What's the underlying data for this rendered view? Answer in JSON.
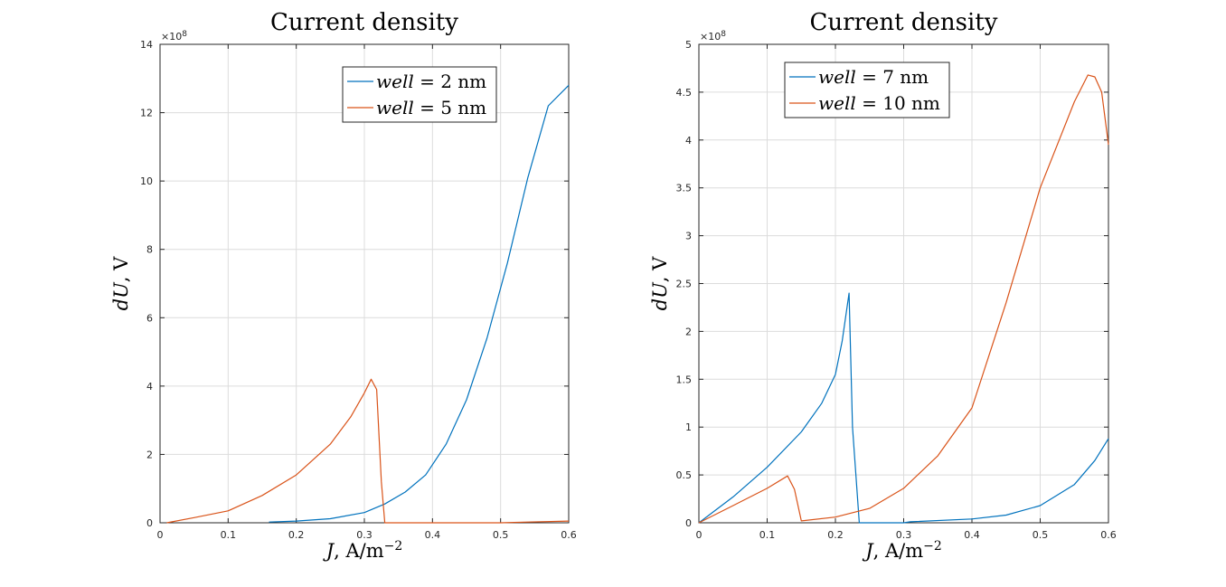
{
  "chart_data": [
    {
      "type": "line",
      "title": "Current density",
      "xlabel": "J, A/m^-2",
      "xlabel_main": "J",
      "xlabel_unit": ", A/m",
      "xlabel_exp": "−2",
      "ylabel": "dU, V",
      "ylabel_main": "dU",
      "ylabel_unit": ", V",
      "y_multiplier": "×10",
      "y_multiplier_exp": "8",
      "xlim": [
        0,
        0.6
      ],
      "ylim": [
        0,
        14
      ],
      "xticks": [
        "0",
        "0.1",
        "0.2",
        "0.3",
        "0.4",
        "0.5",
        "0.6"
      ],
      "yticks": [
        "0",
        "2",
        "4",
        "6",
        "8",
        "10",
        "12",
        "14"
      ],
      "grid": true,
      "legend_position": "top-right",
      "colors": [
        "#0072BD",
        "#D95319"
      ],
      "series": [
        {
          "name": "well = 2 nm",
          "legend_var": "well",
          "legend_eq": " = 2 nm",
          "x": [
            0.16,
            0.2,
            0.25,
            0.3,
            0.33,
            0.36,
            0.39,
            0.42,
            0.45,
            0.48,
            0.51,
            0.54,
            0.57,
            0.6
          ],
          "y": [
            0.02,
            0.05,
            0.12,
            0.3,
            0.55,
            0.9,
            1.4,
            2.3,
            3.6,
            5.4,
            7.6,
            10.1,
            12.2,
            12.8
          ]
        },
        {
          "name": "well = 5 nm",
          "legend_var": "well",
          "legend_eq": " = 5 nm",
          "x": [
            0.01,
            0.05,
            0.1,
            0.15,
            0.2,
            0.25,
            0.28,
            0.3,
            0.31,
            0.318,
            0.325,
            0.33,
            0.4,
            0.5,
            0.54,
            0.6
          ],
          "y": [
            0.0,
            0.15,
            0.35,
            0.8,
            1.4,
            2.3,
            3.1,
            3.8,
            4.2,
            3.9,
            1.2,
            0.0,
            0.0,
            0.0,
            0.02,
            0.05
          ]
        }
      ]
    },
    {
      "type": "line",
      "title": "Current density",
      "xlabel": "J, A/m^-2",
      "xlabel_main": "J",
      "xlabel_unit": ", A/m",
      "xlabel_exp": "−2",
      "ylabel": "dU, V",
      "ylabel_main": "dU",
      "ylabel_unit": ", V",
      "y_multiplier": "×10",
      "y_multiplier_exp": "8",
      "xlim": [
        0,
        0.6
      ],
      "ylim": [
        0,
        5
      ],
      "xticks": [
        "0",
        "0.1",
        "0.2",
        "0.3",
        "0.4",
        "0.5",
        "0.6"
      ],
      "yticks": [
        "0",
        "0.5",
        "1",
        "1.5",
        "2",
        "2.5",
        "3",
        "3.5",
        "4",
        "4.5",
        "5"
      ],
      "grid": true,
      "legend_position": "top-left",
      "colors": [
        "#0072BD",
        "#D95319"
      ],
      "series": [
        {
          "name": "well = 7 nm",
          "legend_var": "well",
          "legend_eq": " = 7 nm",
          "x": [
            0.0,
            0.05,
            0.1,
            0.15,
            0.18,
            0.2,
            0.21,
            0.22,
            0.225,
            0.235,
            0.3,
            0.31,
            0.4,
            0.45,
            0.5,
            0.55,
            0.58,
            0.6
          ],
          "y": [
            0.0,
            0.27,
            0.58,
            0.95,
            1.25,
            1.55,
            1.9,
            2.4,
            1.0,
            0.0,
            0.0,
            0.01,
            0.04,
            0.08,
            0.18,
            0.4,
            0.65,
            0.88
          ]
        },
        {
          "name": "well = 10 nm",
          "legend_var": "well",
          "legend_eq": " = 10 nm",
          "x": [
            0.0,
            0.05,
            0.1,
            0.13,
            0.14,
            0.15,
            0.2,
            0.25,
            0.3,
            0.35,
            0.4,
            0.45,
            0.5,
            0.55,
            0.57,
            0.58,
            0.59,
            0.6
          ],
          "y": [
            0.0,
            0.18,
            0.36,
            0.49,
            0.35,
            0.02,
            0.06,
            0.15,
            0.36,
            0.7,
            1.2,
            2.3,
            3.5,
            4.4,
            4.68,
            4.66,
            4.5,
            3.95
          ]
        }
      ]
    }
  ]
}
